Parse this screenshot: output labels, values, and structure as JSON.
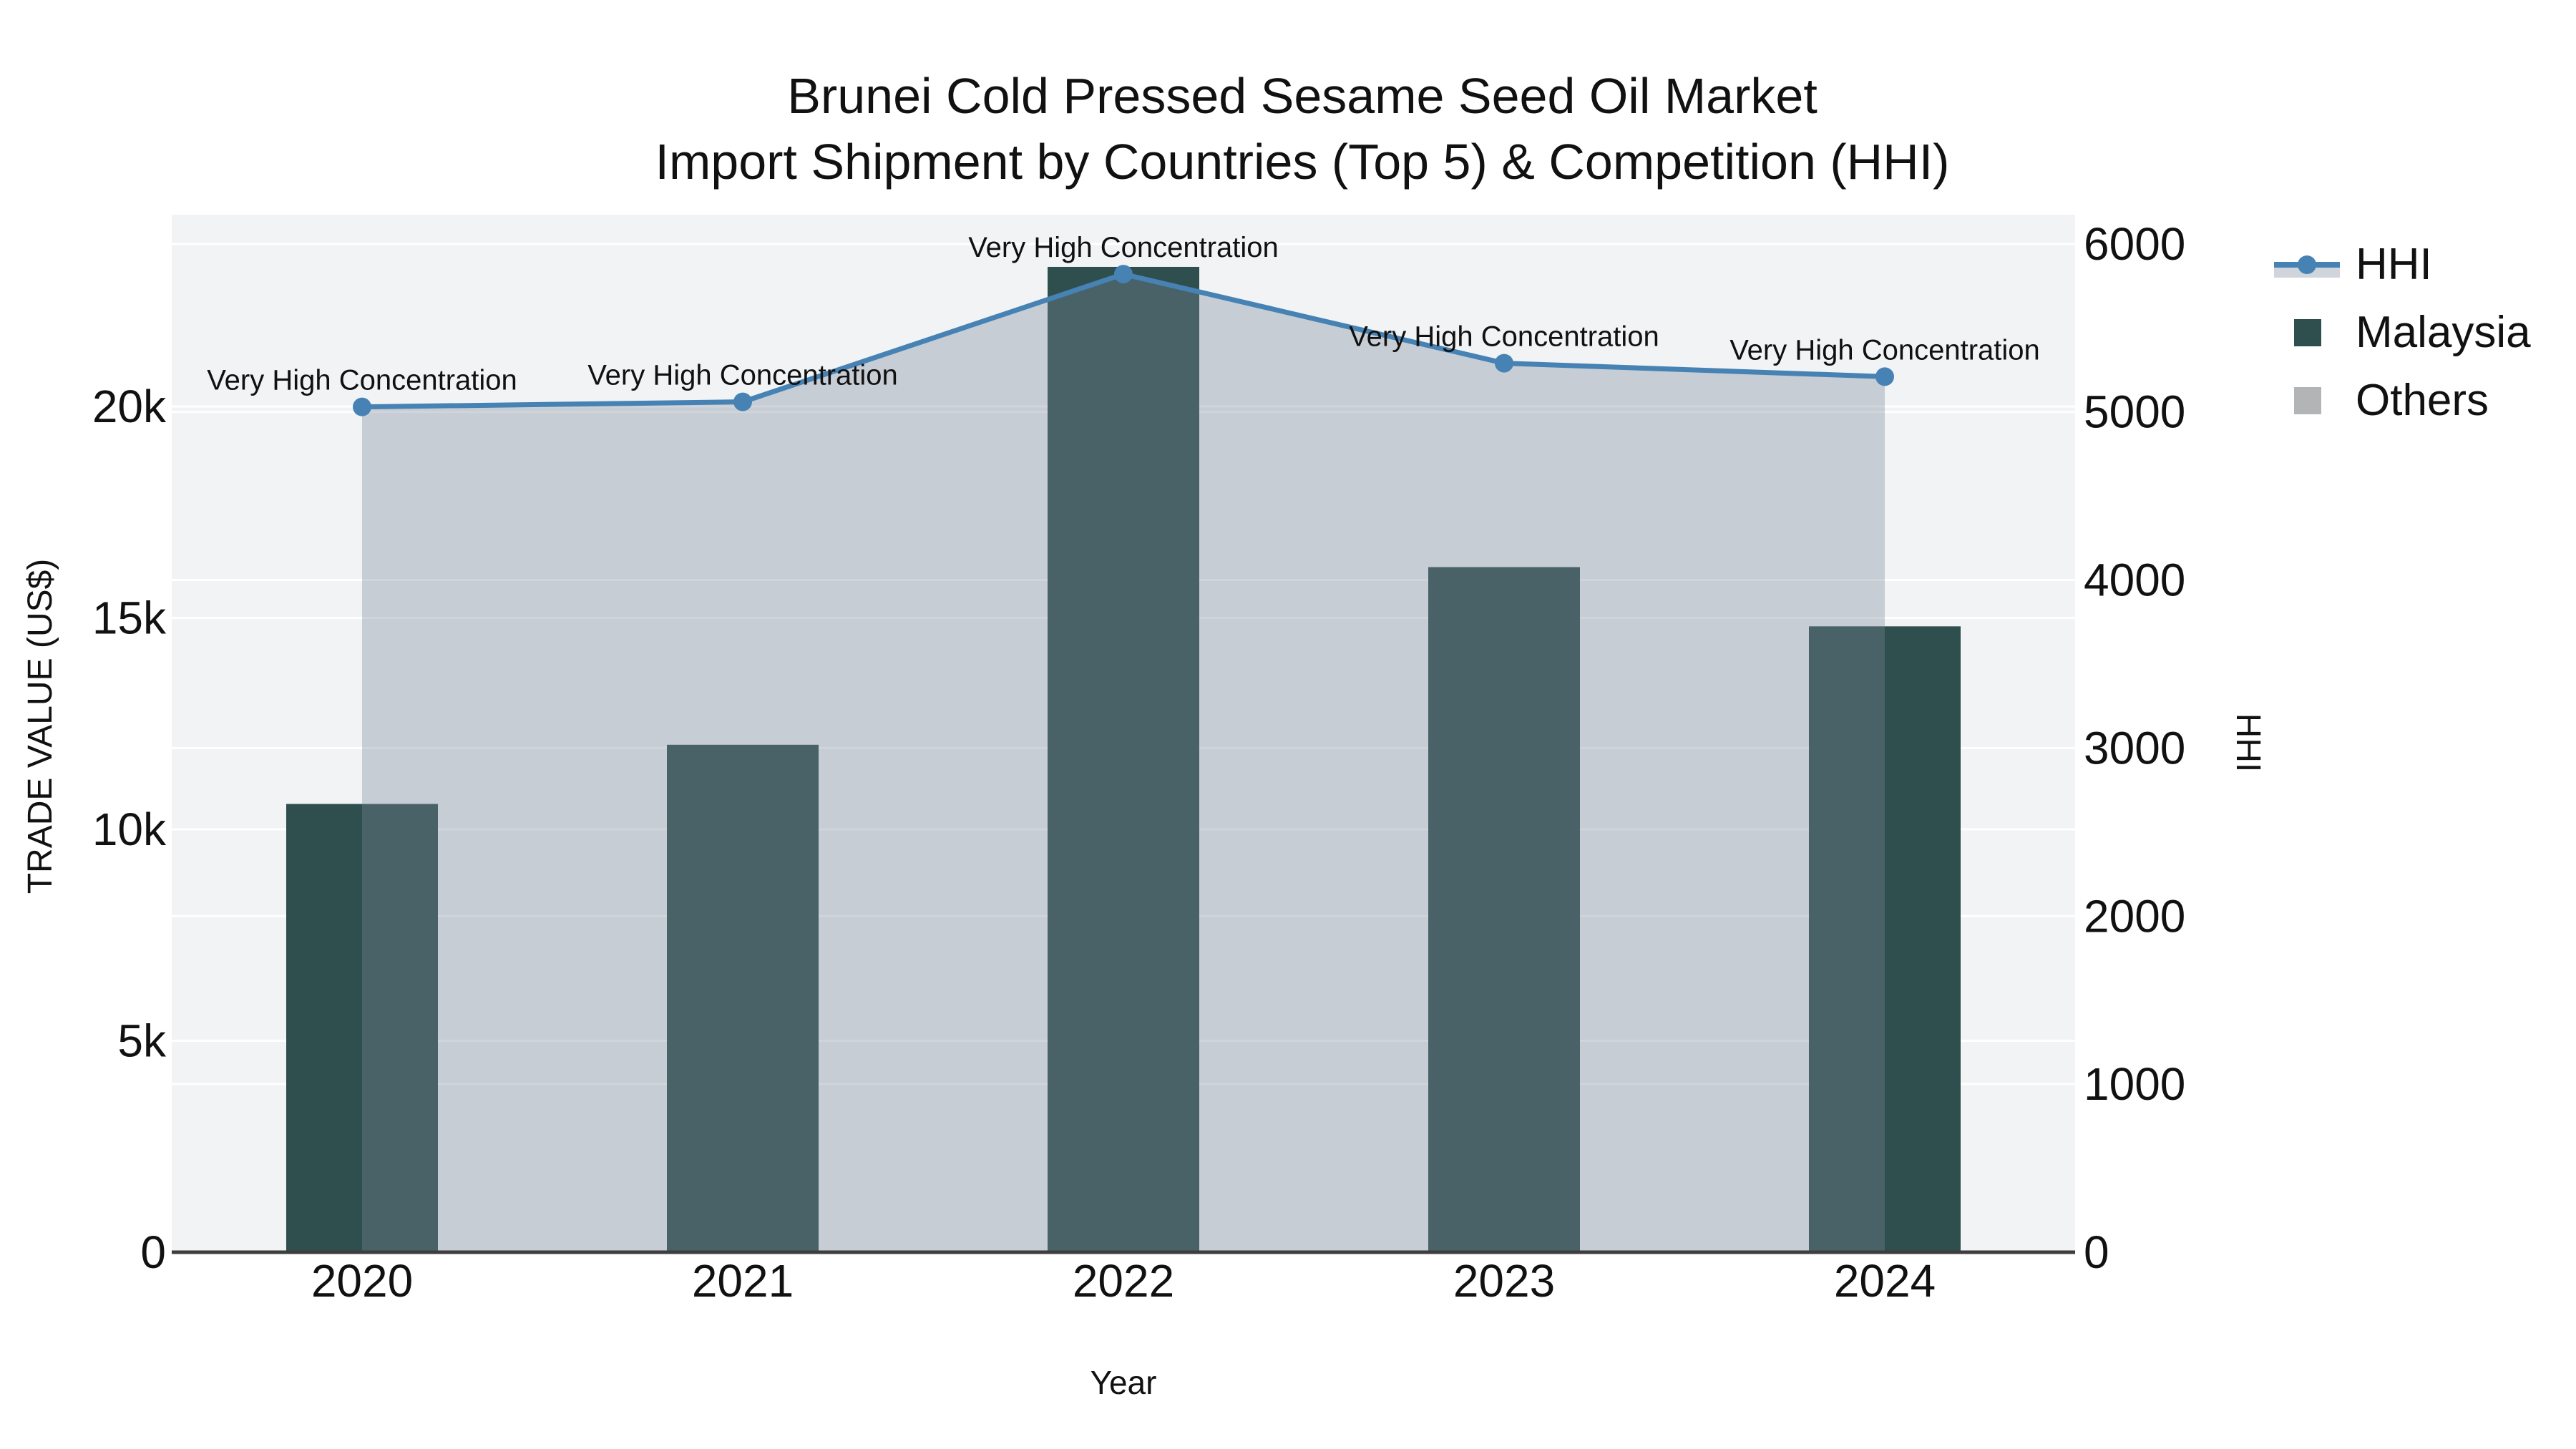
{
  "title": {
    "line1": "Brunei Cold Pressed Sesame Seed Oil Market",
    "line2": "Import Shipment by Countries (Top 5) & Competition (HHI)"
  },
  "axes": {
    "x_title": "Year",
    "y_left_title": "TRADE VALUE (US$)",
    "y_right_title": "HHI",
    "x_tick_labels": [
      "2020",
      "2021",
      "2022",
      "2023",
      "2024"
    ],
    "y_left_tick_labels": [
      "0",
      "5k",
      "10k",
      "15k",
      "20k"
    ],
    "y_right_tick_labels": [
      "0",
      "1000",
      "2000",
      "3000",
      "4000",
      "5000",
      "6000"
    ]
  },
  "legend": {
    "items": [
      {
        "label": "HHI",
        "symbol": "line-marker-area"
      },
      {
        "label": "Malaysia",
        "symbol": "square"
      },
      {
        "label": "Others",
        "symbol": "square"
      }
    ]
  },
  "colors": {
    "bar_malaysia": "#2F4F4F",
    "others_swatch": "#b2b4b6",
    "hhi_line": "#4682B4",
    "hhi_fill": "rgba(119,136,153,0.35)",
    "plot_bg": "#f2f3f4",
    "gridline": "#ffffff",
    "axis_line": "#3d3d3d",
    "text": "#111111"
  },
  "chart_data": {
    "type": "bar",
    "subtype": "combo bar + line-area, dual y-axis",
    "categories": [
      "2020",
      "2021",
      "2022",
      "2023",
      "2024"
    ],
    "series": [
      {
        "name": "Malaysia",
        "type": "bar",
        "yaxis": "left",
        "values": [
          10600,
          12000,
          23300,
          16200,
          14800
        ]
      },
      {
        "name": "Others",
        "type": "bar",
        "yaxis": "left",
        "values": [
          0,
          0,
          0,
          0,
          0
        ],
        "note": "legend entry shown; bars not visible (≈0)"
      },
      {
        "name": "HHI",
        "type": "line-area",
        "yaxis": "right",
        "values": [
          5030,
          5060,
          5820,
          5290,
          5210
        ]
      }
    ],
    "annotations": [
      {
        "x": "2020",
        "text": "Very High Concentration"
      },
      {
        "x": "2021",
        "text": "Very High Concentration"
      },
      {
        "x": "2022",
        "text": "Very High Concentration"
      },
      {
        "x": "2023",
        "text": "Very High Concentration"
      },
      {
        "x": "2024",
        "text": "Very High Concentration"
      },
      {
        "x": "legend",
        "text": ""
      }
    ],
    "title": "Brunei Cold Pressed Sesame Seed Oil Market — Import Shipment by Countries (Top 5) & Competition (HHI)",
    "xlabel": "Year",
    "ylabel_left": "TRADE VALUE (US$)",
    "ylabel_right": "HHI",
    "y_left_ticks": [
      0,
      5000,
      10000,
      15000,
      20000
    ],
    "y_right_ticks": [
      0,
      1000,
      2000,
      3000,
      4000,
      5000,
      6000
    ],
    "ylim_left": [
      0,
      24500
    ],
    "ylim_right": [
      0,
      6170
    ],
    "grid": true,
    "legend_position": "right"
  }
}
